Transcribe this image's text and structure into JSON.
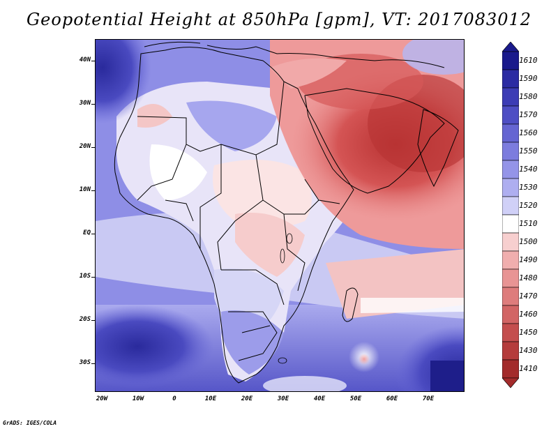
{
  "title": "Geopotential Height at 850hPa [gpm], VT: 2017083012",
  "credit": "GrADS: IGES/COLA",
  "lat_labels": [
    "40N",
    "30N",
    "20N",
    "10N",
    "EQ",
    "10S",
    "20S",
    "30S"
  ],
  "lon_labels": [
    "20W",
    "10W",
    "0",
    "10E",
    "20E",
    "30E",
    "40E",
    "50E",
    "60E",
    "70E"
  ],
  "colorbar": {
    "levels": [
      "1610",
      "1590",
      "1580",
      "1570",
      "1560",
      "1550",
      "1540",
      "1530",
      "1520",
      "1510",
      "1500",
      "1490",
      "1480",
      "1470",
      "1460",
      "1450",
      "1430",
      "1410"
    ],
    "colors": [
      "#1a1a8c",
      "#2b2ba3",
      "#3c3cb5",
      "#4e4ec4",
      "#6565d2",
      "#7c7cde",
      "#9494e8",
      "#aeaef0",
      "#d0d0f7",
      "#ffffff",
      "#f7cfcf",
      "#f0aeae",
      "#e89494",
      "#de7c7c",
      "#d26565",
      "#c44e4e",
      "#b53c3c",
      "#a32b2b"
    ]
  },
  "colors": {
    "ocean_blue": "#6a6ad8",
    "land_neutral": "#f4efef",
    "heat_red": "#d04848",
    "border": "#000000"
  }
}
